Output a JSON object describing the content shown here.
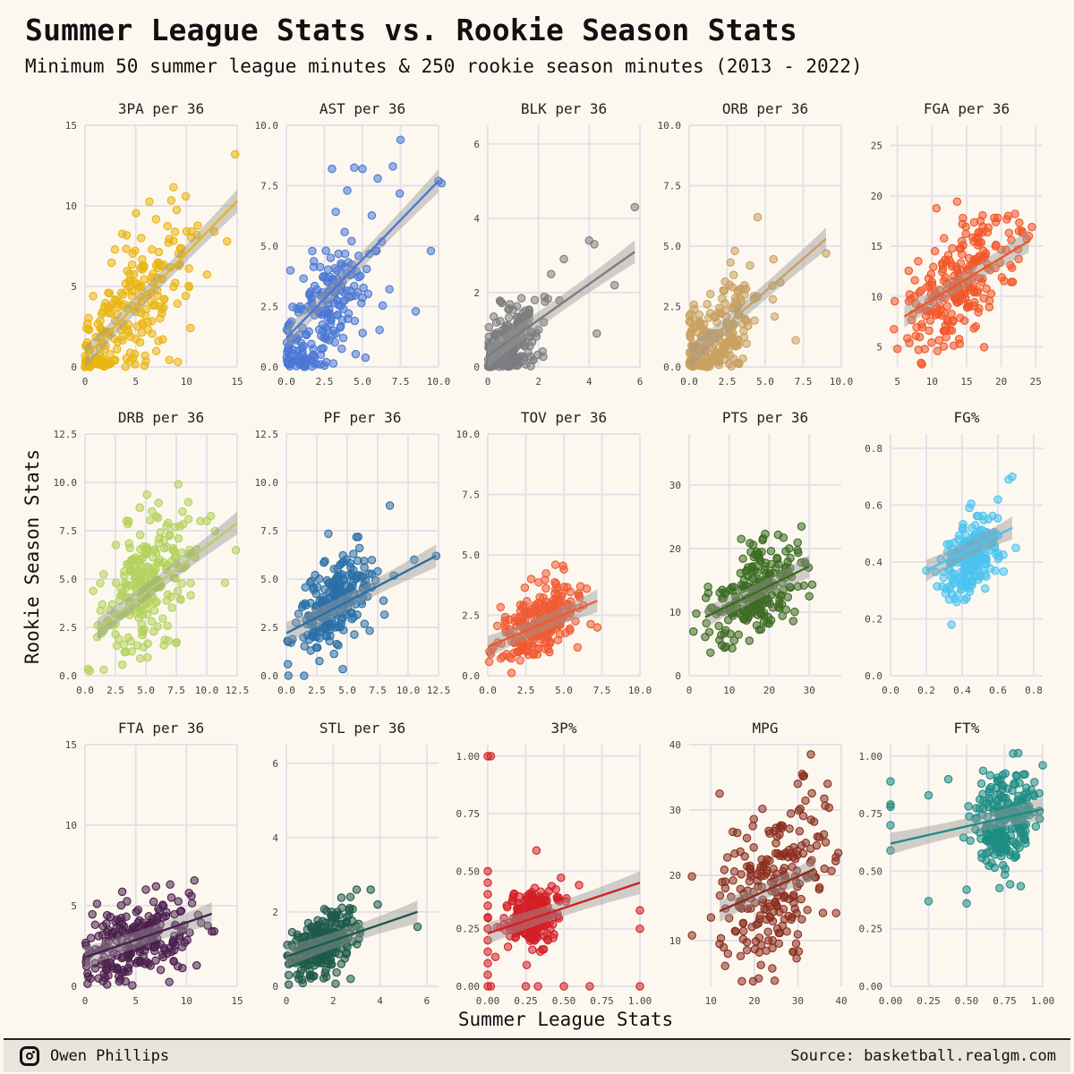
{
  "title": "Summer League Stats vs. Rookie Season Stats",
  "subtitle": "Minimum 50 summer league minutes & 250 rookie season minutes (2013 - 2022)",
  "footer": {
    "author": "Owen Phillips",
    "source": "Source: basketball.realgm.com",
    "icon": "instagram-icon"
  },
  "chart_data": {
    "type": "scatter",
    "title": "Summer League Stats vs. Rookie Season Stats",
    "subtitle": "Minimum 50 summer league minutes & 250 rookie season minutes (2013 - 2022)",
    "xlabel": "Summer League Stats",
    "ylabel": "Rookie Season Stats",
    "grid": true,
    "trend": "linear fit with confidence band per panel",
    "panels": [
      {
        "name": "3PA per 36",
        "color": "#e9b512",
        "xlim": [
          0,
          15
        ],
        "ylim": [
          0,
          15
        ],
        "xticks": [
          0,
          5,
          10,
          15
        ],
        "yticks": [
          0,
          5,
          10,
          15
        ],
        "trend": [
          [
            0,
            0.6
          ],
          [
            15,
            10.3
          ]
        ],
        "center": [
          4,
          3
        ],
        "spread": [
          3,
          2.2
        ],
        "slope": 0.65,
        "points": [
          [
            0,
            0
          ],
          [
            0.2,
            0.1
          ],
          [
            0.5,
            0
          ],
          [
            14.8,
            13.2
          ],
          [
            14,
            7.8
          ],
          [
            10.5,
            8.4
          ],
          [
            11,
            8.2
          ],
          [
            9.5,
            7
          ],
          [
            1,
            0.2
          ],
          [
            0.3,
            0.3
          ]
        ]
      },
      {
        "name": "AST per 36",
        "color": "#4a78d6",
        "xlim": [
          0,
          10
        ],
        "ylim": [
          0,
          10
        ],
        "xticks": [
          0,
          2.5,
          5,
          7.5,
          10
        ],
        "yticks": [
          0,
          2.5,
          5,
          7.5,
          10
        ],
        "trend": [
          [
            0,
            1.2
          ],
          [
            10,
            7.7
          ]
        ],
        "center": [
          2.2,
          2
        ],
        "spread": [
          1.8,
          1.3
        ],
        "slope": 0.65,
        "points": [
          [
            7.5,
            9.4
          ],
          [
            10,
            7.7
          ],
          [
            10.2,
            7.6
          ],
          [
            8.5,
            2.3
          ],
          [
            5,
            8.2
          ],
          [
            6,
            7.8
          ],
          [
            9.5,
            4.8
          ],
          [
            7,
            8.3
          ],
          [
            3,
            8.2
          ],
          [
            4,
            7.3
          ]
        ]
      },
      {
        "name": "BLK per 36",
        "color": "#7b7d80",
        "xlim": [
          0,
          6
        ],
        "ylim": [
          0,
          6.5
        ],
        "xticks": [
          0,
          2,
          4,
          6
        ],
        "yticks": [
          0,
          2,
          4,
          6
        ],
        "trend": [
          [
            0,
            0.3
          ],
          [
            5.8,
            3.1
          ]
        ],
        "center": [
          0.8,
          0.6
        ],
        "spread": [
          0.7,
          0.5
        ],
        "slope": 0.5,
        "points": [
          [
            5.8,
            4.3
          ],
          [
            4,
            3.4
          ],
          [
            4.2,
            3.3
          ],
          [
            5,
            2.2
          ],
          [
            3,
            2.9
          ],
          [
            2.5,
            2.5
          ],
          [
            4.3,
            0.9
          ],
          [
            2,
            1
          ],
          [
            0.2,
            0.1
          ],
          [
            0.1,
            0
          ]
        ]
      },
      {
        "name": "ORB per 36",
        "color": "#c9a060",
        "xlim": [
          0,
          10
        ],
        "ylim": [
          0,
          10
        ],
        "xticks": [
          0,
          2.5,
          5,
          7.5,
          10
        ],
        "yticks": [
          0,
          2.5,
          5,
          7.5,
          10
        ],
        "trend": [
          [
            0,
            0.4
          ],
          [
            9,
            5.3
          ]
        ],
        "center": [
          1.8,
          1.2
        ],
        "spread": [
          1.5,
          1
        ],
        "slope": 0.55,
        "points": [
          [
            4.5,
            6.2
          ],
          [
            9,
            4.7
          ],
          [
            7,
            1.1
          ],
          [
            3,
            4.8
          ],
          [
            6,
            3.5
          ],
          [
            5.5,
            2.8
          ],
          [
            4,
            4.2
          ],
          [
            0.1,
            0.2
          ],
          [
            0.3,
            0.6
          ]
        ]
      },
      {
        "name": "FGA per 36",
        "color": "#f25628",
        "xlim": [
          4,
          26
        ],
        "ylim": [
          3,
          27
        ],
        "xticks": [
          5,
          10,
          15,
          20,
          25
        ],
        "yticks": [
          5,
          10,
          15,
          20,
          25
        ],
        "trend": [
          [
            6,
            8
          ],
          [
            24,
            15.5
          ]
        ],
        "center": [
          14,
          11.5
        ],
        "spread": [
          4,
          2.8
        ],
        "slope": 0.42,
        "points": [
          [
            5,
            4.8
          ],
          [
            24,
            16
          ],
          [
            22,
            18.2
          ],
          [
            23,
            16.5
          ],
          [
            19,
            17.8
          ],
          [
            21,
            18
          ],
          [
            17,
            17.5
          ],
          [
            8,
            13.5
          ],
          [
            14,
            5.3
          ],
          [
            12,
            6.6
          ]
        ]
      },
      {
        "name": "DRB per 36",
        "color": "#b3d15c",
        "xlim": [
          0,
          12.5
        ],
        "ylim": [
          0,
          12.5
        ],
        "xticks": [
          0,
          2.5,
          5,
          7.5,
          10,
          12.5
        ],
        "yticks": [
          0,
          2.5,
          5,
          7.5,
          10,
          12.5
        ],
        "trend": [
          [
            1,
            2.4
          ],
          [
            12.5,
            7.9
          ]
        ],
        "center": [
          5,
          4.6
        ],
        "spread": [
          2,
          1.6
        ],
        "slope": 0.48,
        "points": [
          [
            12.4,
            6.5
          ],
          [
            10,
            8
          ],
          [
            4.5,
            8.7
          ],
          [
            5.5,
            8.5
          ],
          [
            7.5,
            1.7
          ],
          [
            11.5,
            4.8
          ],
          [
            1,
            2
          ],
          [
            1.5,
            2.3
          ],
          [
            8.5,
            8.1
          ]
        ]
      },
      {
        "name": "PF per 36",
        "color": "#2a6fa8",
        "xlim": [
          0,
          12.5
        ],
        "ylim": [
          0,
          12.5
        ],
        "xticks": [
          0,
          2.5,
          5,
          7.5,
          10,
          12.5
        ],
        "yticks": [
          0,
          2.5,
          5,
          7.5,
          10,
          12.5
        ],
        "trend": [
          [
            0,
            2.2
          ],
          [
            12.3,
            6.2
          ]
        ],
        "center": [
          4,
          3.7
        ],
        "spread": [
          1.6,
          1
        ],
        "slope": 0.33,
        "points": [
          [
            8.5,
            8.8
          ],
          [
            12.3,
            6.2
          ],
          [
            10.5,
            6
          ],
          [
            7.5,
            5.4
          ],
          [
            1,
            3.2
          ],
          [
            6,
            6.6
          ],
          [
            2,
            1.3
          ],
          [
            0.5,
            1.9
          ]
        ]
      },
      {
        "name": "TOV per 36",
        "color": "#ef5a32",
        "xlim": [
          0,
          10
        ],
        "ylim": [
          0,
          10
        ],
        "xticks": [
          0,
          2.5,
          5,
          7.5,
          10
        ],
        "yticks": [
          0,
          2.5,
          5,
          7.5,
          10
        ],
        "trend": [
          [
            0,
            1.2
          ],
          [
            7.2,
            3.1
          ]
        ],
        "center": [
          3.3,
          2.2
        ],
        "spread": [
          1.3,
          0.7
        ],
        "slope": 0.28,
        "points": [
          [
            5,
            4.4
          ],
          [
            7.2,
            2
          ],
          [
            0.2,
            0.9
          ],
          [
            6.5,
            3.6
          ],
          [
            4.5,
            3.8
          ],
          [
            1,
            0.8
          ]
        ]
      },
      {
        "name": "PTS per 36",
        "color": "#3d6b22",
        "xlim": [
          0,
          38
        ],
        "ylim": [
          0,
          38
        ],
        "xticks": [
          0,
          10,
          20,
          30
        ],
        "yticks": [
          0,
          10,
          20,
          30
        ],
        "trend": [
          [
            4,
            9.2
          ],
          [
            30,
            17.2
          ]
        ],
        "center": [
          17,
          13
        ],
        "spread": [
          5.5,
          3.5
        ],
        "slope": 0.32,
        "points": [
          [
            19,
            22.3
          ],
          [
            13,
            21.5
          ],
          [
            30,
            12.5
          ],
          [
            26,
            8.6
          ],
          [
            4,
            6.1
          ],
          [
            8,
            6.4
          ],
          [
            28,
            17.8
          ],
          [
            25,
            20
          ]
        ]
      },
      {
        "name": "FG%",
        "color": "#4cc3ef",
        "xlim": [
          0,
          0.85
        ],
        "ylim": [
          0,
          0.85
        ],
        "xticks": [
          0,
          0.2,
          0.4,
          0.6,
          0.8
        ],
        "yticks": [
          0,
          0.2,
          0.4,
          0.6,
          0.8
        ],
        "trend": [
          [
            0.2,
            0.37
          ],
          [
            0.68,
            0.52
          ]
        ],
        "center": [
          0.45,
          0.42
        ],
        "spread": [
          0.08,
          0.06
        ],
        "slope": 0.35,
        "points": [
          [
            0.68,
            0.7
          ],
          [
            0.66,
            0.69
          ],
          [
            0.2,
            0.37
          ],
          [
            0.6,
            0.62
          ],
          [
            0.7,
            0.45
          ],
          [
            0.36,
            0.27
          ]
        ]
      },
      {
        "name": "FTA per 36",
        "color": "#4a1f4d",
        "xlim": [
          0,
          15
        ],
        "ylim": [
          0,
          15
        ],
        "xticks": [
          0,
          5,
          10,
          15
        ],
        "yticks": [
          0,
          5,
          10,
          15
        ],
        "trend": [
          [
            0,
            1.8
          ],
          [
            12.5,
            4.5
          ]
        ],
        "center": [
          5,
          2.6
        ],
        "spread": [
          2.8,
          1.2
        ],
        "slope": 0.2,
        "points": [
          [
            7,
            6.2
          ],
          [
            12.5,
            3.4
          ],
          [
            6,
            6
          ],
          [
            10.5,
            5.6
          ],
          [
            0.1,
            1.5
          ],
          [
            11,
            1.3
          ],
          [
            4,
            0.3
          ]
        ]
      },
      {
        "name": "STL per 36",
        "color": "#1e5a4a",
        "xlim": [
          0,
          6.5
        ],
        "ylim": [
          0,
          6.5
        ],
        "xticks": [
          0,
          2,
          4,
          6
        ],
        "yticks": [
          0,
          2,
          4,
          6
        ],
        "trend": [
          [
            0,
            0.8
          ],
          [
            5.6,
            2
          ]
        ],
        "center": [
          1.5,
          1.1
        ],
        "spread": [
          0.8,
          0.4
        ],
        "slope": 0.22,
        "points": [
          [
            5.6,
            1.6
          ],
          [
            3,
            2.6
          ],
          [
            3.6,
            2.6
          ],
          [
            3.9,
            2.2
          ],
          [
            0.1,
            0.3
          ],
          [
            0.1,
            0.6
          ]
        ]
      },
      {
        "name": "3P%",
        "color": "#d31f26",
        "xlim": [
          0,
          1
        ],
        "ylim": [
          0,
          1.05
        ],
        "xticks": [
          0,
          0.25,
          0.5,
          0.75,
          1
        ],
        "yticks": [
          0,
          0.25,
          0.5,
          0.75,
          1
        ],
        "xtickLabels": [
          "0.00",
          "0.25",
          "0.50",
          "0.75",
          "1.00"
        ],
        "ytickLabels": [
          "0.00",
          "0.25",
          "0.50",
          "0.75",
          "1.00"
        ],
        "trend": [
          [
            0,
            0.23
          ],
          [
            1,
            0.45
          ]
        ],
        "center": [
          0.3,
          0.3
        ],
        "spread": [
          0.09,
          0.06
        ],
        "slope": 0.2,
        "points": [
          [
            0,
            1
          ],
          [
            0.02,
            1
          ],
          [
            0.32,
            0.59
          ],
          [
            0,
            0.5
          ],
          [
            0,
            0.45
          ],
          [
            0,
            0.4
          ],
          [
            0,
            0.35
          ],
          [
            0,
            0.3
          ],
          [
            0,
            0.25
          ],
          [
            0,
            0.2
          ],
          [
            0,
            0.15
          ],
          [
            0,
            0.1
          ],
          [
            0,
            0.05
          ],
          [
            0,
            0
          ],
          [
            0.02,
            0
          ],
          [
            0.25,
            0
          ],
          [
            0.33,
            0
          ],
          [
            0.5,
            0
          ],
          [
            0.67,
            0
          ],
          [
            1,
            0
          ],
          [
            1,
            0.25
          ],
          [
            1,
            0.33
          ],
          [
            0.6,
            0.44
          ]
        ]
      },
      {
        "name": "MPG",
        "color": "#8a2e1f",
        "xlim": [
          5,
          40
        ],
        "ylim": [
          3,
          40
        ],
        "xticks": [
          10,
          20,
          30,
          40
        ],
        "yticks": [
          10,
          20,
          30,
          40
        ],
        "trend": [
          [
            12,
            14.5
          ],
          [
            34,
            21
          ]
        ],
        "center": [
          25,
          18.5
        ],
        "spread": [
          6.5,
          6
        ],
        "slope": 0.3,
        "points": [
          [
            33,
            38.5
          ],
          [
            12,
            32.5
          ],
          [
            31,
            35.5
          ],
          [
            30,
            34
          ],
          [
            21,
            4.2
          ],
          [
            12,
            9.5
          ]
        ]
      },
      {
        "name": "FT%",
        "color": "#1d8c84",
        "xlim": [
          0,
          1
        ],
        "ylim": [
          0,
          1.05
        ],
        "xticks": [
          0,
          0.25,
          0.5,
          0.75,
          1
        ],
        "yticks": [
          0,
          0.25,
          0.5,
          0.75,
          1
        ],
        "xtickLabels": [
          "0.00",
          "0.25",
          "0.50",
          "0.75",
          "1.00"
        ],
        "ytickLabels": [
          "0.00",
          "0.25",
          "0.50",
          "0.75",
          "1.00"
        ],
        "trend": [
          [
            0,
            0.62
          ],
          [
            1,
            0.77
          ]
        ],
        "center": [
          0.75,
          0.72
        ],
        "spread": [
          0.1,
          0.1
        ],
        "slope": 0.15,
        "points": [
          [
            0,
            0.89
          ],
          [
            0,
            0.79
          ],
          [
            0,
            0.78
          ],
          [
            0,
            0.7
          ],
          [
            0,
            0.59
          ],
          [
            0.25,
            0.37
          ],
          [
            0.25,
            0.83
          ],
          [
            0.5,
            0.36
          ],
          [
            0.5,
            0.42
          ],
          [
            1,
            0.96
          ],
          [
            0.38,
            0.9
          ]
        ]
      }
    ]
  }
}
